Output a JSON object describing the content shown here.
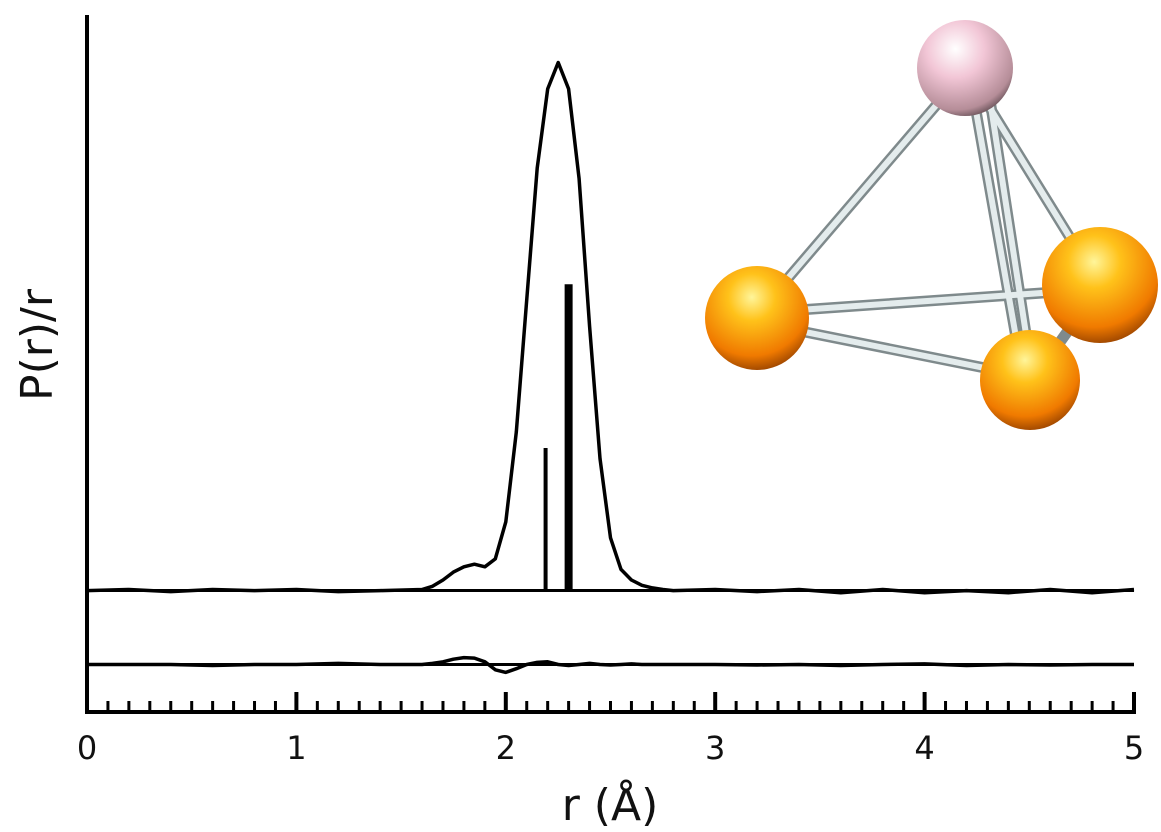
{
  "chart_data": {
    "type": "line",
    "xlabel": "r (Å)",
    "ylabel": "P(r)/r",
    "x": [
      0,
      0.2,
      0.4,
      0.6,
      0.8,
      1.0,
      1.2,
      1.4,
      1.6,
      1.65,
      1.7,
      1.75,
      1.8,
      1.85,
      1.9,
      1.95,
      2.0,
      2.05,
      2.1,
      2.15,
      2.2,
      2.25,
      2.3,
      2.35,
      2.4,
      2.45,
      2.5,
      2.55,
      2.6,
      2.65,
      2.7,
      2.75,
      2.8,
      3.0,
      3.2,
      3.4,
      3.6,
      3.8,
      4.0,
      4.2,
      4.4,
      4.6,
      4.8,
      5.0
    ],
    "series": [
      {
        "color": "#000000",
        "values": [
          0,
          0.002,
          -0.002,
          0.002,
          0,
          0.002,
          -0.002,
          0,
          0.002,
          0.008,
          0.02,
          0.035,
          0.045,
          0.05,
          0.045,
          0.06,
          0.13,
          0.3,
          0.55,
          0.8,
          0.95,
          1.0,
          0.95,
          0.78,
          0.5,
          0.25,
          0.1,
          0.04,
          0.02,
          0.01,
          0.005,
          0.002,
          0,
          0.002,
          -0.002,
          0.002,
          -0.004,
          0.002,
          -0.004,
          0,
          -0.004,
          0.002,
          -0.004,
          0.002
        ]
      },
      {
        "color": "#000000",
        "values": [
          -0.14,
          -0.14,
          -0.14,
          -0.142,
          -0.14,
          -0.14,
          -0.138,
          -0.14,
          -0.14,
          -0.138,
          -0.135,
          -0.13,
          -0.127,
          -0.128,
          -0.135,
          -0.15,
          -0.155,
          -0.148,
          -0.14,
          -0.136,
          -0.135,
          -0.14,
          -0.142,
          -0.14,
          -0.138,
          -0.14,
          -0.141,
          -0.14,
          -0.139,
          -0.14,
          -0.14,
          -0.14,
          -0.14,
          -0.14,
          -0.141,
          -0.14,
          -0.142,
          -0.14,
          -0.139,
          -0.142,
          -0.14,
          -0.141,
          -0.14,
          -0.14
        ]
      }
    ],
    "stems": {
      "x": [
        2.19,
        2.3
      ],
      "values": [
        0.27,
        0.58
      ],
      "widths": [
        4,
        8
      ]
    },
    "baselines": [
      0,
      -0.14
    ],
    "xlim": [
      0,
      5
    ],
    "ylim": [
      -0.23,
      1.09
    ],
    "xticks": [
      0,
      1,
      2,
      3,
      4,
      5
    ],
    "xminorticks": [
      0.1,
      0.2,
      0.3,
      0.4,
      0.5,
      0.6,
      0.7,
      0.8,
      0.9,
      1.1,
      1.2,
      1.3,
      1.4,
      1.5,
      1.6,
      1.7,
      1.8,
      1.9,
      2.1,
      2.2,
      2.3,
      2.4,
      2.5,
      2.6,
      2.7,
      2.8,
      2.9,
      3.1,
      3.2,
      3.3,
      3.4,
      3.5,
      3.6,
      3.7,
      3.8,
      3.9,
      4.1,
      4.2,
      4.3,
      4.4,
      4.5,
      4.6,
      4.7,
      4.8,
      4.9
    ]
  }
}
